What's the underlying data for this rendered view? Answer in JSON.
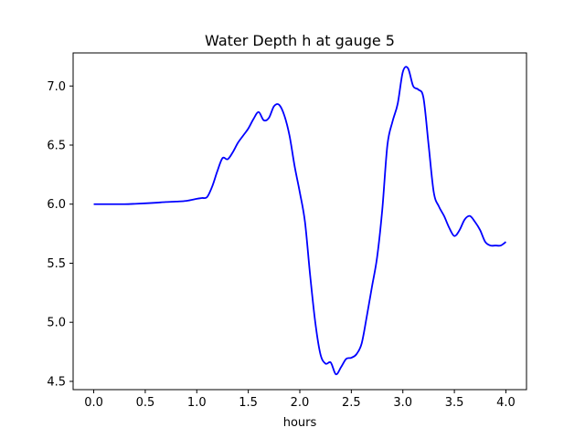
{
  "chart_data": {
    "type": "line",
    "title": "Water Depth h at gauge 5",
    "xlabel": "hours",
    "ylabel": "",
    "xlim": [
      -0.2,
      4.2
    ],
    "ylim": [
      4.43,
      7.28
    ],
    "grid": false,
    "x_ticks": [
      0.0,
      0.5,
      1.0,
      1.5,
      2.0,
      2.5,
      3.0,
      3.5,
      4.0
    ],
    "x_tick_labels": [
      "0.0",
      "0.5",
      "1.0",
      "1.5",
      "2.0",
      "2.5",
      "3.0",
      "3.5",
      "4.0"
    ],
    "y_ticks": [
      4.5,
      5.0,
      5.5,
      6.0,
      6.5,
      7.0
    ],
    "y_tick_labels": [
      "4.5",
      "5.0",
      "5.5",
      "6.0",
      "6.5",
      "7.0"
    ],
    "series": [
      {
        "color": "#0000ff",
        "x": [
          0.0,
          0.1,
          0.2,
          0.3,
          0.4,
          0.5,
          0.6,
          0.7,
          0.8,
          0.9,
          1.0,
          1.05,
          1.1,
          1.15,
          1.2,
          1.25,
          1.3,
          1.35,
          1.4,
          1.45,
          1.5,
          1.55,
          1.6,
          1.65,
          1.7,
          1.75,
          1.8,
          1.85,
          1.9,
          1.95,
          2.0,
          2.05,
          2.1,
          2.15,
          2.2,
          2.25,
          2.3,
          2.35,
          2.4,
          2.45,
          2.5,
          2.55,
          2.6,
          2.65,
          2.7,
          2.75,
          2.8,
          2.85,
          2.9,
          2.95,
          3.0,
          3.05,
          3.1,
          3.15,
          3.2,
          3.25,
          3.3,
          3.35,
          3.4,
          3.45,
          3.5,
          3.55,
          3.6,
          3.65,
          3.7,
          3.75,
          3.8,
          3.85,
          3.9,
          3.95,
          4.0
        ],
        "y": [
          6.0,
          6.0,
          6.0,
          6.0,
          6.003,
          6.007,
          6.012,
          6.018,
          6.022,
          6.028,
          6.045,
          6.052,
          6.06,
          6.15,
          6.28,
          6.39,
          6.38,
          6.44,
          6.52,
          6.58,
          6.64,
          6.72,
          6.78,
          6.71,
          6.73,
          6.83,
          6.84,
          6.75,
          6.58,
          6.32,
          6.1,
          5.85,
          5.4,
          5.0,
          4.73,
          4.65,
          4.66,
          4.56,
          4.62,
          4.69,
          4.7,
          4.73,
          4.82,
          5.05,
          5.3,
          5.55,
          5.95,
          6.5,
          6.7,
          6.85,
          7.12,
          7.15,
          7.0,
          6.97,
          6.9,
          6.5,
          6.1,
          5.98,
          5.9,
          5.8,
          5.73,
          5.78,
          5.87,
          5.9,
          5.85,
          5.78,
          5.68,
          5.65,
          5.65,
          5.65,
          5.68
        ]
      }
    ]
  }
}
